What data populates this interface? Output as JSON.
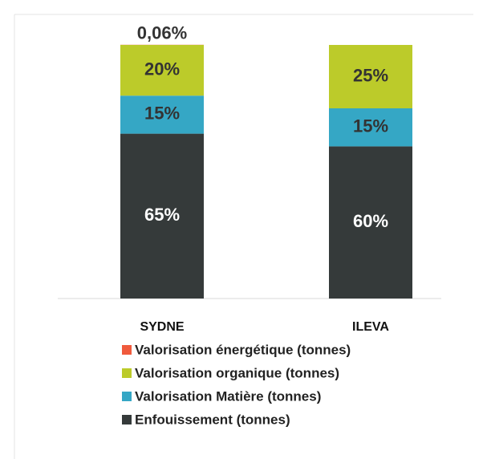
{
  "chart_data": {
    "type": "stacked_bar",
    "categories": [
      "SYDNE",
      "ILEVA"
    ],
    "series": [
      {
        "name": "Enfouissement (tonnes)",
        "color": "#353a3a",
        "values": [
          65,
          60
        ],
        "value_labels": [
          "65%",
          "60%"
        ]
      },
      {
        "name": "Valorisation Matière (tonnes)",
        "color": "#35a7c5",
        "values": [
          15,
          15
        ],
        "value_labels": [
          "15%",
          "15%"
        ]
      },
      {
        "name": "Valorisation organique (tonnes)",
        "color": "#bccb2a",
        "values": [
          20,
          25
        ],
        "value_labels": [
          "20%",
          "25%"
        ]
      },
      {
        "name": "Valorisation énergétique (tonnes)",
        "color": "#f05a3c",
        "values": [
          0.06,
          0
        ],
        "value_labels": [
          "0,06%",
          null
        ]
      }
    ],
    "ylim": [
      0,
      100
    ]
  }
}
